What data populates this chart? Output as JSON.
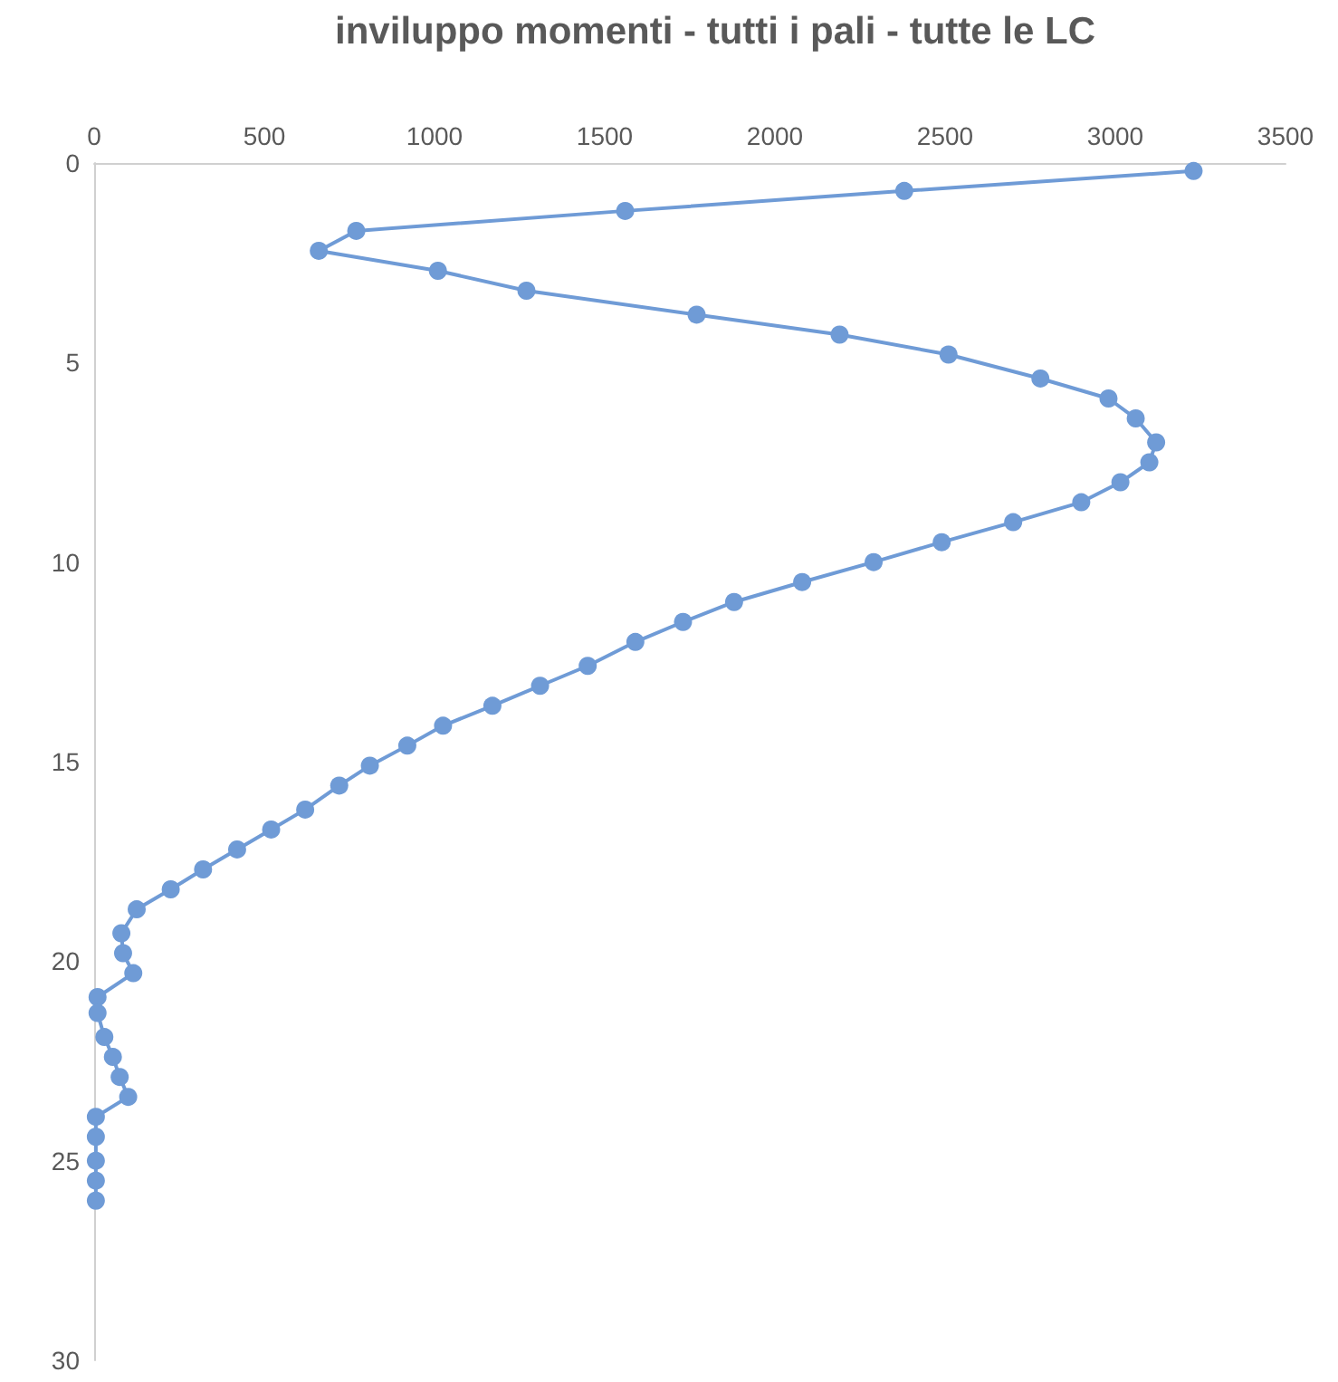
{
  "chart_data": {
    "type": "line",
    "title": "inviluppo momenti - tutti i pali - tutte le LC",
    "x": [
      3230,
      2380,
      1560,
      770,
      660,
      1010,
      1270,
      1770,
      2190,
      2510,
      2780,
      2980,
      3060,
      3120,
      3100,
      3015,
      2900,
      2700,
      2490,
      2290,
      2080,
      1880,
      1730,
      1590,
      1450,
      1310,
      1170,
      1025,
      920,
      810,
      720,
      620,
      520,
      420,
      320,
      225,
      125,
      80,
      85,
      115,
      10,
      10,
      30,
      55,
      75,
      100,
      5,
      5,
      5,
      5,
      5
    ],
    "series": [
      {
        "color": "#6f9bd6",
        "values": [
          0.2,
          0.7,
          1.2,
          1.7,
          2.2,
          2.7,
          3.2,
          3.8,
          4.3,
          4.8,
          5.4,
          5.9,
          6.4,
          7.0,
          7.5,
          8.0,
          8.5,
          9.0,
          9.5,
          10.0,
          10.5,
          11.0,
          11.5,
          12.0,
          12.6,
          13.1,
          13.6,
          14.1,
          14.6,
          15.1,
          15.6,
          16.2,
          16.7,
          17.2,
          17.7,
          18.2,
          18.7,
          19.3,
          19.8,
          20.3,
          20.9,
          21.3,
          21.9,
          22.4,
          22.9,
          23.4,
          23.9,
          24.4,
          25.0,
          25.5,
          26.0
        ]
      }
    ],
    "xlim": [
      0,
      3500
    ],
    "xticks": [
      0,
      500,
      1000,
      1500,
      2000,
      2500,
      3000,
      3500
    ],
    "ylim": [
      30,
      0
    ],
    "yticks": [
      0,
      5,
      10,
      15,
      20,
      25,
      30
    ],
    "grid": false,
    "marker": "circle",
    "line_style": "solid"
  }
}
